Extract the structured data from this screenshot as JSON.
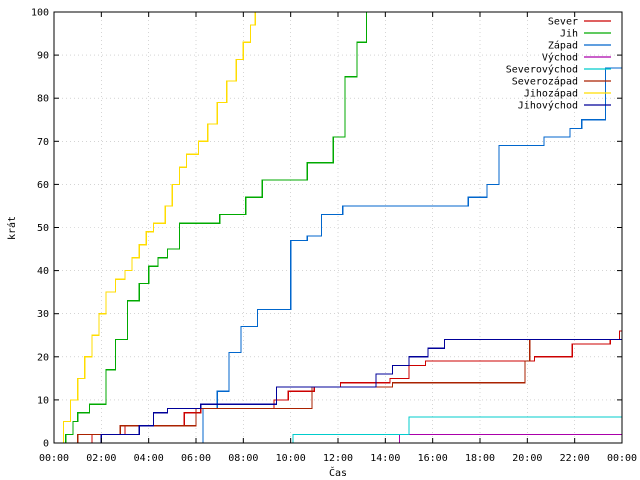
{
  "chart_data": {
    "type": "line",
    "xlabel": "Čas",
    "ylabel": "krát",
    "xlim": [
      0,
      24
    ],
    "ylim": [
      0,
      100
    ],
    "xticks": [
      {
        "value": 0,
        "label": "00:00"
      },
      {
        "value": 2,
        "label": "02:00"
      },
      {
        "value": 4,
        "label": "04:00"
      },
      {
        "value": 6,
        "label": "06:00"
      },
      {
        "value": 8,
        "label": "08:00"
      },
      {
        "value": 10,
        "label": "10:00"
      },
      {
        "value": 12,
        "label": "12:00"
      },
      {
        "value": 14,
        "label": "14:00"
      },
      {
        "value": 16,
        "label": "16:00"
      },
      {
        "value": 18,
        "label": "18:00"
      },
      {
        "value": 20,
        "label": "20:00"
      },
      {
        "value": 22,
        "label": "22:00"
      },
      {
        "value": 24,
        "label": "00:00"
      }
    ],
    "yticks": [
      0,
      10,
      20,
      30,
      40,
      50,
      60,
      70,
      80,
      90,
      100
    ],
    "grid": true,
    "legend_position": "top-right",
    "step": true,
    "series": [
      {
        "name": "Sever",
        "color": "#cc0000",
        "x": [
          0.6,
          1.6,
          3.0,
          5.5,
          6.2,
          9.3,
          9.9,
          11.0,
          12.1,
          14.2,
          15.0,
          15.7,
          20.0,
          20.3,
          21.9,
          23.5,
          23.9
        ],
        "y": [
          0,
          2,
          4,
          7,
          8,
          10,
          12,
          13,
          14,
          15,
          18,
          19,
          19,
          20,
          23,
          24,
          26
        ]
      },
      {
        "name": "Jih",
        "color": "#00aa00",
        "x": [
          0.3,
          0.5,
          0.8,
          1.0,
          1.5,
          2.2,
          2.6,
          3.1,
          3.6,
          4.0,
          4.4,
          4.8,
          5.3,
          5.6,
          6.0,
          7.0,
          8.1,
          8.8,
          9.5,
          10.7,
          11.1,
          11.8,
          12.3,
          12.8,
          13.2,
          13.4
        ],
        "y": [
          0,
          2,
          5,
          7,
          9,
          17,
          24,
          33,
          37,
          41,
          43,
          45,
          51,
          51,
          51,
          53,
          57,
          61,
          61,
          65,
          65,
          71,
          85,
          93,
          100,
          100
        ]
      },
      {
        "name": "Západ",
        "color": "#0066cc",
        "x": [
          0,
          5.8,
          6.3,
          6.9,
          7.4,
          7.9,
          8.6,
          9.4,
          10.0,
          10.7,
          11.3,
          12.2,
          16.7,
          17.5,
          18.3,
          18.8,
          19.7,
          20.7,
          21.8,
          22.3,
          23.3
        ],
        "y": [
          0,
          0,
          8,
          12,
          21,
          27,
          31,
          31,
          47,
          48,
          53,
          55,
          55,
          57,
          60,
          69,
          69,
          71,
          73,
          75,
          87
        ]
      },
      {
        "name": "Východ",
        "color": "#aa00aa",
        "x": [
          0,
          14.5,
          14.6
        ],
        "y": [
          0,
          0,
          2
        ]
      },
      {
        "name": "Severovýchod",
        "color": "#00cccc",
        "x": [
          0,
          10.1,
          14.6,
          15.0
        ],
        "y": [
          0,
          2,
          2,
          6
        ]
      },
      {
        "name": "Severozápad",
        "color": "#aa2200",
        "x": [
          0,
          1.0,
          1.4,
          2.8,
          5.4,
          6.0,
          10.9,
          14.3,
          19.9,
          20.1,
          24.0
        ],
        "y": [
          0,
          2,
          2,
          4,
          4,
          8,
          13,
          14,
          19,
          24,
          25
        ]
      },
      {
        "name": "Jihozápad",
        "color": "#ffdd00",
        "x": [
          0.2,
          0.4,
          0.7,
          1.0,
          1.3,
          1.6,
          1.9,
          2.2,
          2.6,
          3.0,
          3.3,
          3.6,
          3.9,
          4.2,
          4.7,
          5.0,
          5.3,
          5.6,
          6.1,
          6.5,
          6.9,
          7.3,
          7.7,
          8.0,
          8.3,
          8.5
        ],
        "y": [
          0,
          5,
          10,
          15,
          20,
          25,
          30,
          35,
          38,
          40,
          43,
          46,
          49,
          51,
          55,
          60,
          64,
          67,
          70,
          74,
          79,
          84,
          89,
          93,
          97,
          100
        ]
      },
      {
        "name": "Jihovýchod",
        "color": "#000099",
        "x": [
          0,
          2.0,
          3.6,
          4.2,
          4.8,
          6.2,
          9.4,
          11.0,
          13.6,
          14.3,
          15.0,
          15.8,
          16.5,
          24.0
        ],
        "y": [
          0,
          2,
          4,
          7,
          8,
          9,
          13,
          13,
          16,
          18,
          20,
          22,
          24,
          24
        ]
      }
    ]
  }
}
